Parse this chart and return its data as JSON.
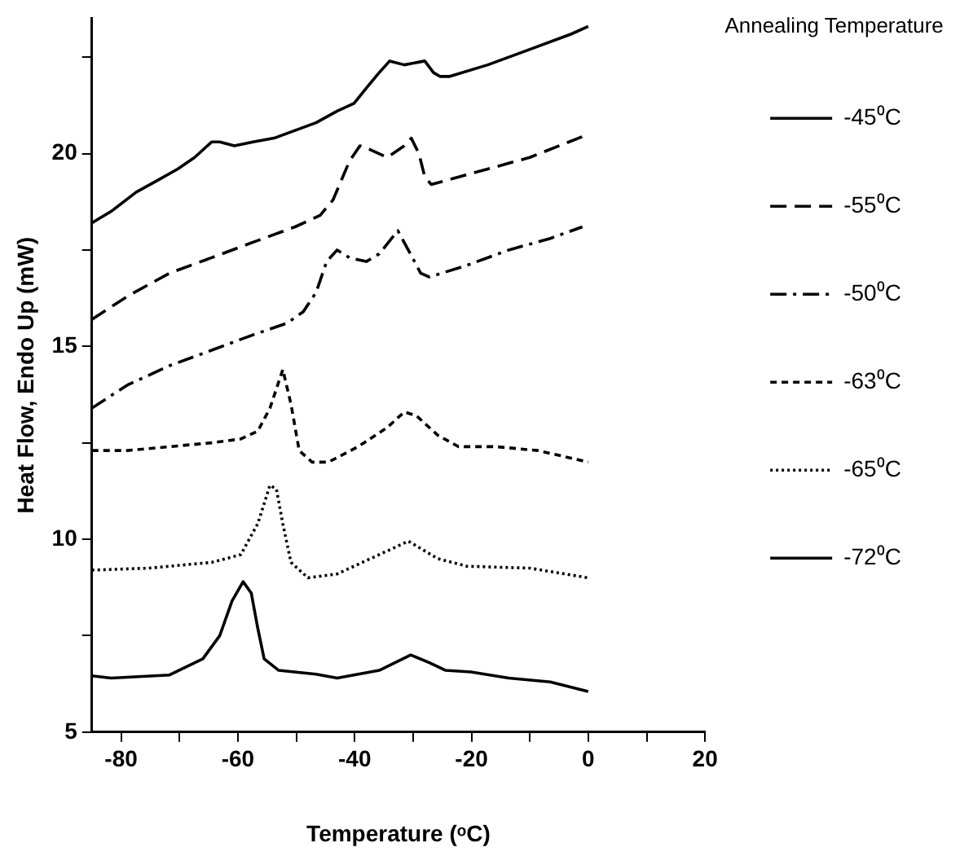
{
  "chart_data": {
    "type": "line",
    "xlabel": "Temperature (ᵒC)",
    "ylabel": "Heat Flow, Endo Up (mW)",
    "legend_title": "Annealing Temperature",
    "legend": "right",
    "grid": false,
    "marker": "none",
    "xlim": [
      -85,
      20
    ],
    "xticks": [
      -80,
      {
        "value": -70,
        "label": null
      },
      -60,
      {
        "value": -50,
        "label": null
      },
      -40,
      {
        "value": -30,
        "label": null
      },
      -20,
      {
        "value": -10,
        "label": null
      },
      0,
      {
        "value": 10,
        "label": null
      },
      20
    ],
    "ylim": [
      5,
      23.5
    ],
    "yticks": [
      5,
      {
        "value": 7.5,
        "label": null
      },
      10,
      {
        "value": 12.5,
        "label": null
      },
      15,
      {
        "value": 17.5,
        "label": null
      },
      20,
      {
        "value": 22.5,
        "label": null
      }
    ],
    "series": [
      {
        "name": "-45⁰C",
        "color": "#000000",
        "line_style": "solid",
        "x": [
          -85,
          -81.7,
          -77.4,
          -73.8,
          -70.3,
          -67.4,
          -64.5,
          -63.1,
          -60.6,
          -57.4,
          -53.8,
          -50.2,
          -46.6,
          -43.0,
          -40.1,
          -38.0,
          -35.8,
          -34.0,
          -31.5,
          -28.0,
          -26.5,
          -25.4,
          -23.7,
          -17.2,
          -10.0,
          -2.9,
          0
        ],
        "values": [
          18.2,
          18.5,
          19.0,
          19.3,
          19.6,
          19.9,
          20.3,
          20.3,
          20.2,
          20.3,
          20.4,
          20.6,
          20.8,
          21.1,
          21.3,
          21.7,
          22.1,
          22.4,
          22.3,
          22.4,
          22.1,
          22.0,
          22.0,
          22.3,
          22.7,
          23.1,
          23.3
        ]
      },
      {
        "name": "-55⁰C",
        "color": "#000000",
        "line_style": "dashed",
        "x": [
          -85,
          -78.9,
          -71.7,
          -64.5,
          -57.4,
          -50.2,
          -45.9,
          -43.7,
          -42.3,
          -40.9,
          -39.1,
          -37.3,
          -34.4,
          -31.5,
          -30.3,
          -29.0,
          -28.0,
          -26.9,
          -24.4,
          -17.2,
          -10.0,
          0
        ],
        "values": [
          15.7,
          16.3,
          16.9,
          17.3,
          17.7,
          18.1,
          18.4,
          18.8,
          19.3,
          19.8,
          20.2,
          20.1,
          19.9,
          20.2,
          20.4,
          20.0,
          19.4,
          19.2,
          19.3,
          19.6,
          19.9,
          20.5
        ]
      },
      {
        "name": "-50⁰C",
        "color": "#000000",
        "line_style": "dashdot",
        "x": [
          -85,
          -78.9,
          -71.7,
          -64.5,
          -57.4,
          -51.6,
          -48.8,
          -46.6,
          -44.8,
          -43.0,
          -40.9,
          -38.0,
          -35.8,
          -32.6,
          -30.1,
          -28.7,
          -27.2,
          -20.8,
          -13.6,
          -6.5,
          -1.0
        ],
        "values": [
          13.4,
          14.0,
          14.5,
          14.9,
          15.3,
          15.6,
          15.9,
          16.4,
          17.2,
          17.5,
          17.3,
          17.2,
          17.4,
          18.0,
          17.3,
          16.9,
          16.8,
          17.1,
          17.5,
          17.8,
          18.1
        ]
      },
      {
        "name": "-63⁰C",
        "color": "#000000",
        "line_style": "shortdash",
        "x": [
          -85,
          -78.9,
          -71.7,
          -64.5,
          -59.5,
          -56.6,
          -54.5,
          -53.4,
          -52.3,
          -50.9,
          -49.5,
          -47.3,
          -44.5,
          -39.4,
          -34.4,
          -31.5,
          -29.4,
          -25.8,
          -22.2,
          -15.8,
          -8.6,
          0
        ],
        "values": [
          12.3,
          12.3,
          12.4,
          12.5,
          12.6,
          12.8,
          13.4,
          13.9,
          14.4,
          13.5,
          12.3,
          12.0,
          12.0,
          12.4,
          12.9,
          13.3,
          13.2,
          12.7,
          12.4,
          12.4,
          12.3,
          12.0
        ]
      },
      {
        "name": "-65⁰C",
        "color": "#000000",
        "line_style": "dotted",
        "x": [
          -85,
          -75.3,
          -64.5,
          -59.5,
          -56.6,
          -54.5,
          -53.4,
          -52.3,
          -50.9,
          -48.0,
          -43.0,
          -35.8,
          -30.8,
          -25.8,
          -20.8,
          -10.0,
          0
        ],
        "values": [
          9.2,
          9.25,
          9.4,
          9.6,
          10.4,
          11.4,
          11.3,
          10.4,
          9.4,
          9.0,
          9.1,
          9.6,
          9.95,
          9.5,
          9.3,
          9.25,
          9.0
        ]
      },
      {
        "name": "-72⁰C",
        "color": "#000000",
        "line_style": "solid",
        "x": [
          -85,
          -81.7,
          -71.7,
          -66.0,
          -63.1,
          -61.0,
          -59.1,
          -57.7,
          -56.6,
          -55.5,
          -53.0,
          -46.6,
          -43.0,
          -35.8,
          -30.4,
          -27.2,
          -24.4,
          -20.1,
          -13.6,
          -6.5,
          0
        ],
        "values": [
          6.46,
          6.4,
          6.48,
          6.9,
          7.5,
          8.4,
          8.9,
          8.6,
          7.7,
          6.9,
          6.6,
          6.5,
          6.4,
          6.6,
          7.0,
          6.8,
          6.6,
          6.56,
          6.4,
          6.3,
          6.05
        ]
      }
    ]
  }
}
